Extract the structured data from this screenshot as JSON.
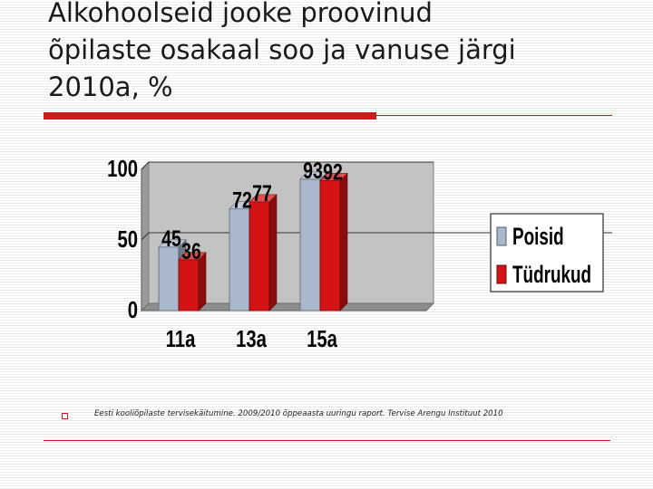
{
  "slide": {
    "title_lines": [
      "Alkohoolseid jooke proovinud",
      "õpilaste osakaal soo ja vanuse järgi",
      "2010a, %"
    ],
    "source": "Eesti kooliõpilaste tervisekäitumine. 2009/2010 õppeaasta uuringu raport. Tervise Arengu Instituut 2010"
  },
  "chart_data": {
    "type": "bar",
    "categories": [
      "11a",
      "13a",
      "15a"
    ],
    "series": [
      {
        "name": "Poisid",
        "values": [
          45,
          72,
          93
        ],
        "color": "#a9b8cd"
      },
      {
        "name": "Tüdrukud",
        "values": [
          36,
          77,
          92
        ],
        "color": "#d41414"
      }
    ],
    "ylim": [
      0,
      100
    ],
    "yticks": [
      "0",
      "50",
      "100"
    ],
    "grid": true,
    "legend": "right",
    "style": "3d-column"
  }
}
